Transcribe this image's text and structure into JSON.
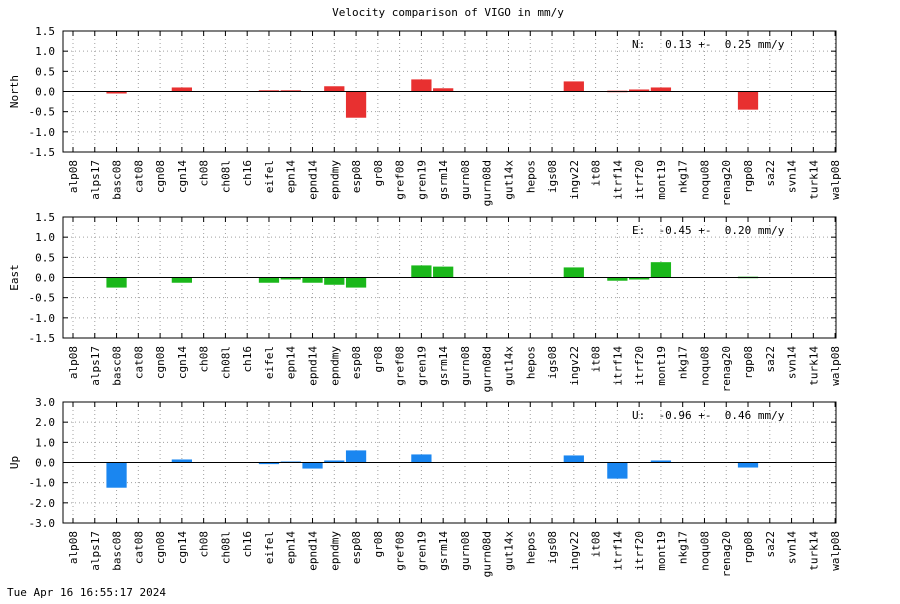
{
  "title": "Velocity comparison of VIGO in mm/y",
  "timestamp": "Tue Apr 16 16:55:17 2024",
  "chart_data": {
    "type": "bar",
    "title": "Velocity comparison of VIGO in mm/y",
    "categories": [
      "alp08",
      "alps17",
      "basc08",
      "cat08",
      "cgn08",
      "cgn14",
      "ch08",
      "ch08l",
      "ch16",
      "eifel",
      "epn14",
      "epnd14",
      "epndmy",
      "esp08",
      "gr08",
      "gref08",
      "gren19",
      "gsrm14",
      "gurn08",
      "gurn08d",
      "gut14x",
      "hepos",
      "igs08",
      "ingv22",
      "it08",
      "itrf14",
      "itrf20",
      "mont19",
      "nkg17",
      "noqu08",
      "renag20",
      "rgp08",
      "sa22",
      "svn14",
      "turk14",
      "walp08"
    ],
    "grid": true,
    "panels": [
      {
        "ylabel": "North",
        "color": "#e83030",
        "ylim": [
          -1.5,
          1.5
        ],
        "yticks": [
          1.5,
          1.0,
          0.5,
          0.0,
          -0.5,
          -1.0,
          -1.5
        ],
        "annotation": "N:   0.13 +-  0.25 mm/y",
        "values": [
          null,
          null,
          -0.05,
          null,
          null,
          0.1,
          null,
          null,
          null,
          0.03,
          0.03,
          null,
          0.13,
          -0.65,
          null,
          null,
          0.3,
          0.08,
          null,
          null,
          null,
          null,
          null,
          0.25,
          null,
          0.02,
          0.05,
          0.1,
          null,
          null,
          null,
          -0.45,
          null,
          null,
          null,
          null
        ]
      },
      {
        "ylabel": "East",
        "color": "#1ab71a",
        "ylim": [
          -1.5,
          1.5
        ],
        "yticks": [
          1.5,
          1.0,
          0.5,
          0.0,
          -0.5,
          -1.0,
          -1.5
        ],
        "annotation": "E:  -0.45 +-  0.20 mm/y",
        "values": [
          null,
          null,
          -0.25,
          null,
          null,
          -0.13,
          null,
          null,
          null,
          -0.13,
          -0.05,
          -0.13,
          -0.18,
          -0.25,
          null,
          null,
          0.3,
          0.27,
          null,
          null,
          null,
          null,
          null,
          0.25,
          null,
          -0.08,
          -0.05,
          0.38,
          null,
          null,
          null,
          0.02,
          null,
          null,
          null,
          null
        ]
      },
      {
        "ylabel": "Up",
        "color": "#1a86f0",
        "ylim": [
          -3.0,
          3.0
        ],
        "yticks": [
          3.0,
          2.0,
          1.0,
          0.0,
          -1.0,
          -2.0,
          -3.0
        ],
        "annotation": "U:  -0.96 +-  0.46 mm/y",
        "values": [
          null,
          null,
          -1.25,
          null,
          null,
          0.15,
          null,
          null,
          null,
          -0.08,
          0.05,
          -0.3,
          0.1,
          0.6,
          null,
          null,
          0.4,
          null,
          null,
          null,
          null,
          null,
          null,
          0.35,
          null,
          -0.8,
          null,
          0.1,
          null,
          null,
          null,
          -0.25,
          null,
          null,
          null,
          null
        ]
      }
    ]
  }
}
